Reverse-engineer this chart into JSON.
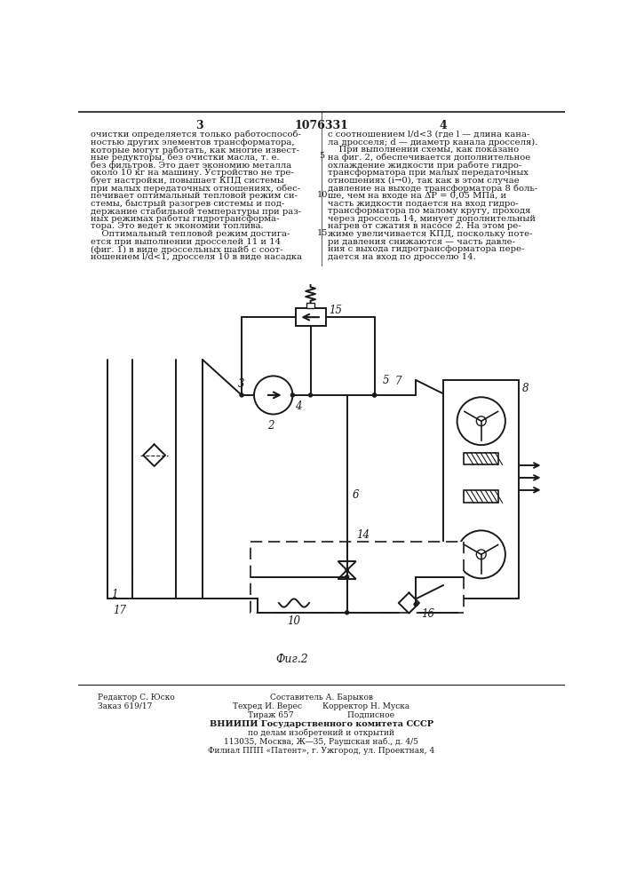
{
  "patent_number": "1076331",
  "page_left": "3",
  "page_right": "4",
  "text_left": [
    "очистки определяется только работоспособ-",
    "ностью других элементов трансформатора,",
    "которые могут работать, как многие извест-",
    "ные редукторы, без очистки масла, т. е.",
    "без фильтров. Это дает экономию металла",
    "около 10 кг на машину. Устройство не тре-",
    "бует настройки, повышает КПД системы",
    "при малых передаточных отношениях, обес-",
    "печивает оптимальный тепловой режим си-",
    "стемы, быстрый разогрев системы и под-",
    "держание стабильной температуры при раз-",
    "ных режимах работы гидротрансформа-",
    "тора. Это ведет к экономии топлива.",
    "    Оптимальный тепловой режим достига-",
    "ется при выполнении дросселей 11 и 14",
    "(фиг. 1) в виде дроссельных шайб с соот-",
    "ношением l/d<1, дросселя 10 в виде насадка"
  ],
  "text_right": [
    "с соотношением l/d<3 (где l — длина кана-",
    "ла дросселя; d — диаметр канала дросселя).",
    "    При выполнении схемы, как показано",
    "на фиг. 2, обеспечивается дополнительное",
    "охлаждение жидкости при работе гидро-",
    "трансформатора при малых передаточных",
    "отношениях (i→0), так как в этом случае",
    "давление на выходе трансформатора 8 боль-",
    "ше, чем на входе на ΔР = 0,05 МПа, и",
    "часть жидкости подается на вход гидро-",
    "трансформатора по малому кругу, проходя",
    "через дроссель 14, минует дополнительный",
    "нагрев от сжатия в насосе 2. На этом ре-",
    "жиме увеличивается КПД, поскольку поте-",
    "ри давления снижаются — часть давле-",
    "ния с выхода гидротрансформатора пере-",
    "дается на вход по дросселю 14."
  ],
  "fig_caption": "Фиг.2",
  "footer_left_lines": [
    "Редактор С. Юско",
    "Заказ 619/17"
  ],
  "footer_center_lines": [
    "Составитель А. Барыков",
    "Техред И. Верес        Корректор Н. Муска",
    "Тираж 657                     Подписное",
    "ВНИИПИ Государственного комитета СССР",
    "по делам изобретений и открытий",
    "113035, Москва, Ж—35, Раушская наб., д. 4/5",
    "Филиал ППП «Патент», г. Ужгород, ул. Проектная, 4"
  ],
  "bg_color": "#ffffff",
  "text_color": "#1a1a1a",
  "line_color": "#1a1a1a"
}
